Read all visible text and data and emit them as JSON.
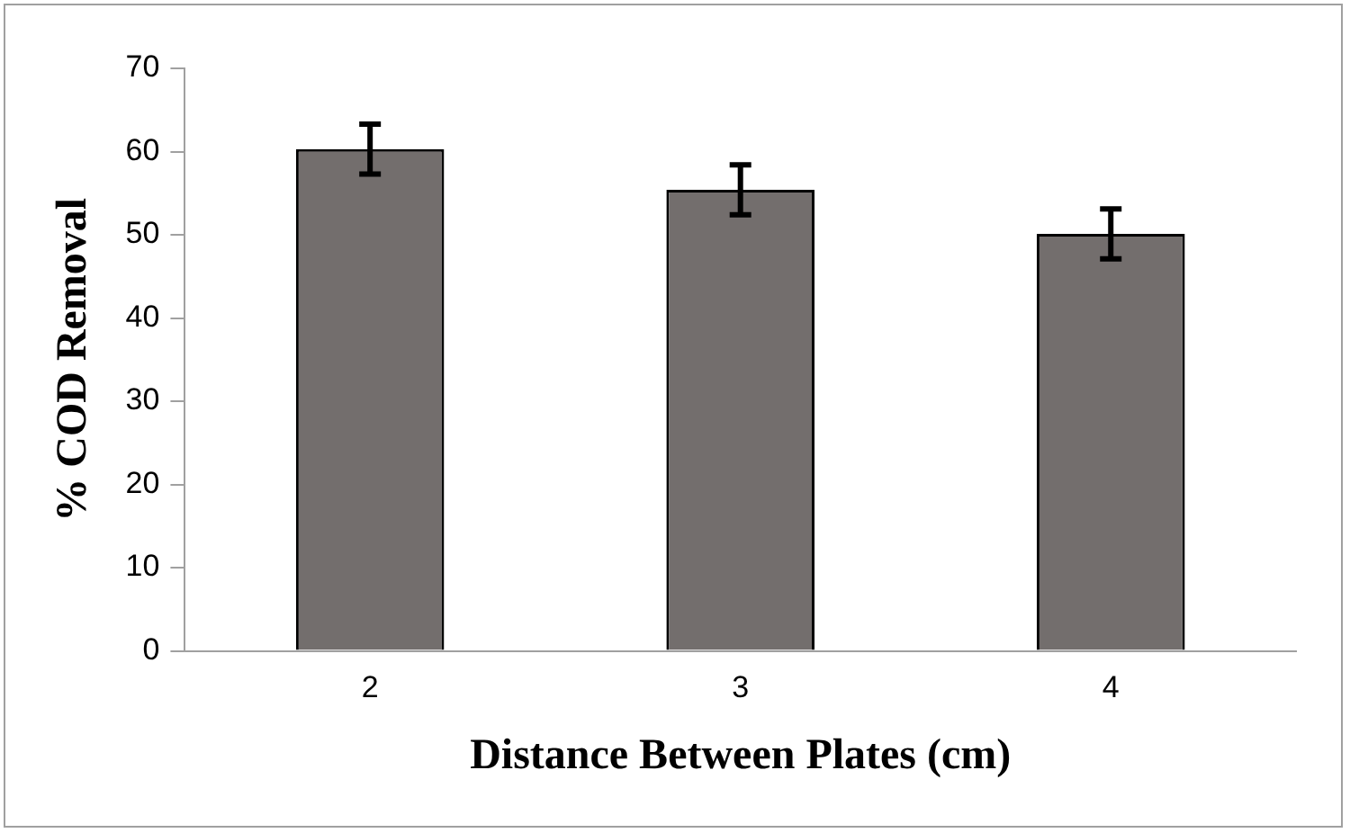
{
  "chart_data": {
    "type": "bar",
    "xlabel": "Distance Between Plates (cm)",
    "ylabel": "% COD Removal",
    "categories": [
      "2",
      "3",
      "4"
    ],
    "values": [
      60.3,
      55.4,
      50.1
    ],
    "errors": [
      3,
      3,
      3
    ],
    "color": "#736e6d",
    "ylim": [
      0,
      70
    ],
    "yticks": [
      0,
      10,
      20,
      30,
      40,
      50,
      60,
      70
    ],
    "grid": false,
    "legend": false
  }
}
